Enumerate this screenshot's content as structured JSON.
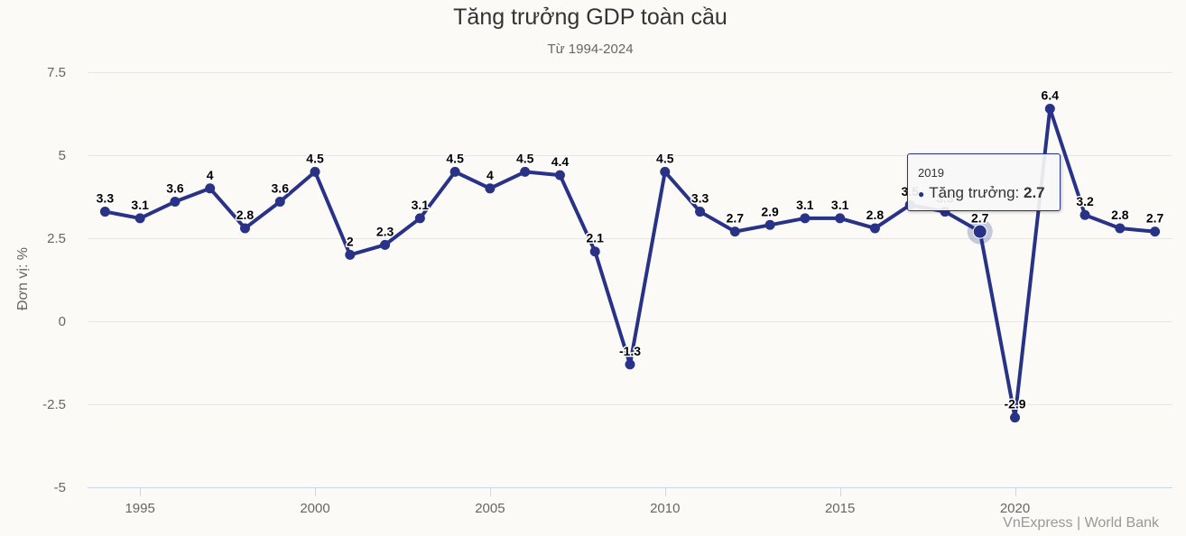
{
  "chart_data": {
    "type": "line",
    "title": "Tăng trưởng GDP toàn cầu",
    "subtitle": "Từ 1994-2024",
    "ylabel": "Đơn vị: %",
    "xlabel": "",
    "credit": "VnExpress | World Bank",
    "x": [
      1994,
      1995,
      1996,
      1997,
      1998,
      1999,
      2000,
      2001,
      2002,
      2003,
      2004,
      2005,
      2006,
      2007,
      2008,
      2009,
      2010,
      2011,
      2012,
      2013,
      2014,
      2015,
      2016,
      2017,
      2018,
      2019,
      2020,
      2021,
      2022,
      2023,
      2024
    ],
    "series": [
      {
        "name": "Tăng trưởng",
        "color": "#283286",
        "values": [
          3.3,
          3.1,
          3.6,
          4,
          2.8,
          3.6,
          4.5,
          2,
          2.3,
          3.1,
          4.5,
          4,
          4.5,
          4.4,
          2.1,
          -1.3,
          4.5,
          3.3,
          2.7,
          2.9,
          3.1,
          3.1,
          2.8,
          3.5,
          3.3,
          2.7,
          -2.9,
          6.4,
          3.2,
          2.8,
          2.7
        ]
      }
    ],
    "ylim": [
      -5,
      7.5
    ],
    "yticks": [
      -5,
      -2.5,
      0,
      2.5,
      5,
      7.5
    ],
    "ytick_labels": [
      "-5",
      "-2.5",
      "0",
      "2.5",
      "5",
      "7.5"
    ],
    "xticks": [
      1995,
      2000,
      2005,
      2010,
      2015,
      2020
    ],
    "xtick_labels": [
      "1995",
      "2000",
      "2005",
      "2010",
      "2015",
      "2020"
    ],
    "xlim": [
      1993.5,
      2024.5
    ],
    "grid": true,
    "legend": "none",
    "highlighted_point": 2019
  },
  "tooltip": {
    "header": "2019",
    "series_label": "Tăng trưởng: ",
    "value": "2.7"
  }
}
